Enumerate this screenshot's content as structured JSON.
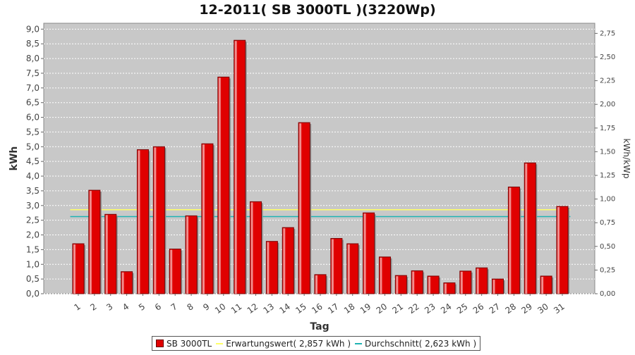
{
  "chart_data": {
    "type": "bar",
    "title": "12-2011( SB 3000TL )(3220Wp)",
    "xlabel": "Tag",
    "ylabel": "kWh",
    "ylabel_right": "kWh/kWp",
    "categories": [
      "1",
      "2",
      "3",
      "4",
      "5",
      "6",
      "7",
      "8",
      "9",
      "10",
      "11",
      "12",
      "13",
      "14",
      "15",
      "16",
      "17",
      "18",
      "19",
      "20",
      "21",
      "22",
      "23",
      "24",
      "25",
      "26",
      "27",
      "28",
      "29",
      "30",
      "31"
    ],
    "series": [
      {
        "name": "SB 3000TL",
        "color": "#e00000",
        "values": [
          1.7,
          3.52,
          2.7,
          0.75,
          4.9,
          5.0,
          1.52,
          2.65,
          5.1,
          7.37,
          8.62,
          3.13,
          1.78,
          2.25,
          5.82,
          0.65,
          1.88,
          1.7,
          2.75,
          1.25,
          0.62,
          0.78,
          0.6,
          0.37,
          0.77,
          0.88,
          0.5,
          3.63,
          4.45,
          0.6,
          2.97
        ]
      }
    ],
    "reference_lines": [
      {
        "name": "Erwartungswert( 2,857 kWh )",
        "value": 2.857,
        "color": "#ffff66"
      },
      {
        "name": "Durchschnitt( 2,623 kWh )",
        "value": 2.623,
        "color": "#1fb3b3"
      }
    ],
    "ylim": [
      0,
      9.2
    ],
    "yticks": [
      "0,0",
      "0,5",
      "1,0",
      "1,5",
      "2,0",
      "2,5",
      "3,0",
      "3,5",
      "4,0",
      "4,5",
      "5,0",
      "5,5",
      "6,0",
      "6,5",
      "7,0",
      "7,5",
      "8,0",
      "8,5",
      "9,0"
    ],
    "ylim_right": [
      0,
      2.857
    ],
    "yticks_right": [
      "0,00",
      "0,25",
      "0,50",
      "0,75",
      "1,00",
      "1,25",
      "1,50",
      "1,75",
      "2,00",
      "2,25",
      "2,50",
      "2,75"
    ],
    "grid": true,
    "plot_background": "#c8c8c8",
    "legend_position": "bottom"
  }
}
